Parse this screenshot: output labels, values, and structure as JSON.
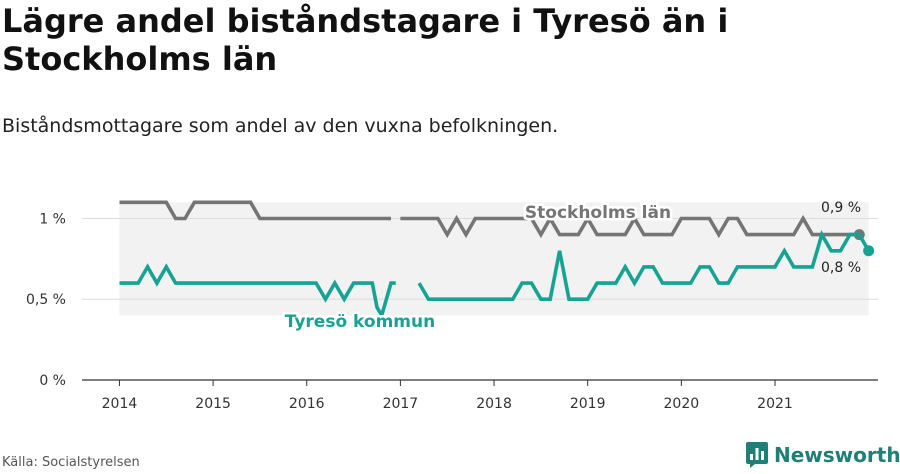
{
  "title": "Lägre andel biståndstagare i Tyresö än i Stockholms län",
  "subtitle": "Biståndsmottagare som andel av den vuxna befolkningen.",
  "source": "Källa: Socialstyrelsen",
  "brand": {
    "name": "Newsworthy",
    "icon": "newsworthy-logo-icon"
  },
  "colors": {
    "stockholm": "#757575",
    "tyreso": "#17a394",
    "band": "#f2f2f2"
  },
  "chart_data": {
    "type": "line",
    "x_ticks": [
      "2014",
      "2015",
      "2016",
      "2017",
      "2018",
      "2019",
      "2020",
      "2021"
    ],
    "y_ticks": [
      {
        "value": 0,
        "label": "0 %"
      },
      {
        "value": 0.5,
        "label": "0,5 %"
      },
      {
        "value": 1,
        "label": "1 %"
      }
    ],
    "ylim": [
      0,
      1.3
    ],
    "xlim": [
      2013.6,
      2022.1
    ],
    "grid": true,
    "series": [
      {
        "name": "Stockholms län",
        "color": "#757575",
        "end_label": "0,9 %",
        "segments": [
          [
            [
              2014.0,
              1.1
            ],
            [
              2014.2,
              1.1
            ],
            [
              2014.5,
              1.1
            ],
            [
              2014.6,
              1.0
            ],
            [
              2014.7,
              1.0
            ],
            [
              2014.8,
              1.1
            ],
            [
              2015.0,
              1.1
            ],
            [
              2015.3,
              1.1
            ],
            [
              2015.4,
              1.1
            ],
            [
              2015.5,
              1.0
            ],
            [
              2016.0,
              1.0
            ],
            [
              2016.5,
              1.0
            ],
            [
              2016.9,
              1.0
            ]
          ],
          [
            [
              2017.0,
              1.0
            ],
            [
              2017.3,
              1.0
            ],
            [
              2017.4,
              1.0
            ],
            [
              2017.5,
              0.9
            ],
            [
              2017.6,
              1.0
            ],
            [
              2017.7,
              0.9
            ],
            [
              2017.8,
              1.0
            ],
            [
              2018.0,
              1.0
            ],
            [
              2018.3,
              1.0
            ],
            [
              2018.4,
              1.0
            ],
            [
              2018.5,
              0.9
            ],
            [
              2018.6,
              1.0
            ],
            [
              2018.7,
              0.9
            ],
            [
              2018.9,
              0.9
            ],
            [
              2019.0,
              1.0
            ],
            [
              2019.1,
              0.9
            ],
            [
              2019.4,
              0.9
            ],
            [
              2019.5,
              1.0
            ],
            [
              2019.6,
              0.9
            ],
            [
              2019.9,
              0.9
            ],
            [
              2020.0,
              1.0
            ],
            [
              2020.2,
              1.0
            ],
            [
              2020.3,
              1.0
            ],
            [
              2020.4,
              0.9
            ],
            [
              2020.5,
              1.0
            ],
            [
              2020.6,
              1.0
            ],
            [
              2020.7,
              0.9
            ],
            [
              2021.0,
              0.9
            ],
            [
              2021.2,
              0.9
            ],
            [
              2021.3,
              1.0
            ],
            [
              2021.4,
              0.9
            ],
            [
              2021.6,
              0.9
            ],
            [
              2021.9,
              0.9
            ]
          ]
        ]
      },
      {
        "name": "Tyresö kommun",
        "color": "#17a394",
        "end_label": "0,8 %",
        "segments": [
          [
            [
              2014.0,
              0.6
            ],
            [
              2014.2,
              0.6
            ],
            [
              2014.3,
              0.7
            ],
            [
              2014.4,
              0.6
            ],
            [
              2014.5,
              0.7
            ],
            [
              2014.6,
              0.6
            ],
            [
              2015.0,
              0.6
            ],
            [
              2016.1,
              0.6
            ],
            [
              2016.2,
              0.5
            ],
            [
              2016.3,
              0.6
            ],
            [
              2016.4,
              0.5
            ],
            [
              2016.5,
              0.6
            ],
            [
              2016.7,
              0.6
            ],
            [
              2016.75,
              0.45
            ],
            [
              2016.8,
              0.4
            ],
            [
              2016.9,
              0.6
            ],
            [
              2016.95,
              0.6
            ]
          ],
          [
            [
              2017.2,
              0.6
            ],
            [
              2017.3,
              0.5
            ],
            [
              2017.6,
              0.5
            ],
            [
              2018.0,
              0.5
            ],
            [
              2018.2,
              0.5
            ],
            [
              2018.3,
              0.6
            ],
            [
              2018.4,
              0.6
            ],
            [
              2018.5,
              0.5
            ],
            [
              2018.6,
              0.5
            ],
            [
              2018.7,
              0.8
            ],
            [
              2018.8,
              0.5
            ],
            [
              2019.0,
              0.5
            ],
            [
              2019.1,
              0.6
            ],
            [
              2019.3,
              0.6
            ],
            [
              2019.4,
              0.7
            ],
            [
              2019.5,
              0.6
            ],
            [
              2019.6,
              0.7
            ],
            [
              2019.7,
              0.7
            ],
            [
              2019.8,
              0.6
            ],
            [
              2020.0,
              0.6
            ],
            [
              2020.1,
              0.6
            ],
            [
              2020.2,
              0.7
            ],
            [
              2020.3,
              0.7
            ],
            [
              2020.4,
              0.6
            ],
            [
              2020.5,
              0.6
            ],
            [
              2020.6,
              0.7
            ],
            [
              2020.8,
              0.7
            ],
            [
              2021.0,
              0.7
            ],
            [
              2021.1,
              0.8
            ],
            [
              2021.2,
              0.7
            ],
            [
              2021.4,
              0.7
            ],
            [
              2021.5,
              0.9
            ],
            [
              2021.6,
              0.8
            ],
            [
              2021.7,
              0.8
            ],
            [
              2021.8,
              0.9
            ],
            [
              2021.9,
              0.9
            ],
            [
              2022.0,
              0.8
            ]
          ]
        ]
      }
    ],
    "band": {
      "from": 2014.0,
      "to": 2022.0
    }
  }
}
